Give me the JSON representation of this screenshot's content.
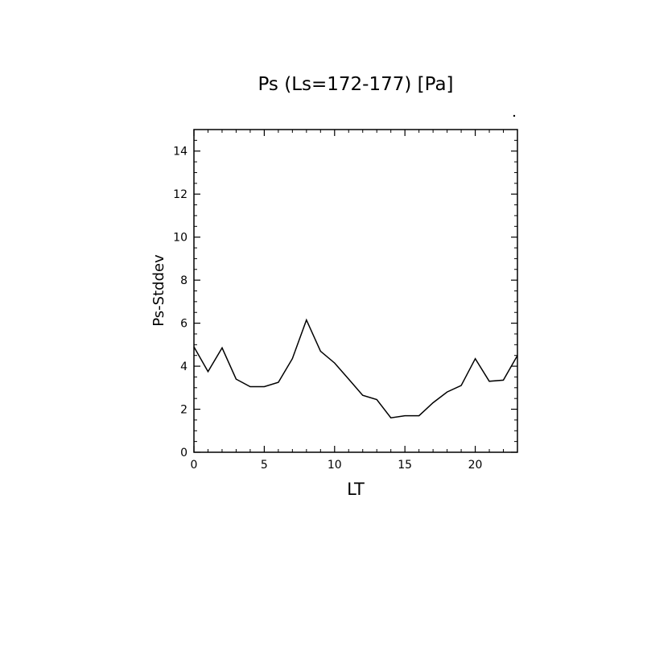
{
  "chart_data": {
    "type": "line",
    "title": "Ps (Ls=172-177) [Pa]",
    "xlabel": "LT",
    "ylabel": "Ps-Stddev",
    "xlim": [
      0,
      23
    ],
    "ylim": [
      0,
      15
    ],
    "x_ticks": [
      "0",
      "5",
      "10",
      "15",
      "20"
    ],
    "y_ticks": [
      "0",
      "2",
      "4",
      "6",
      "8",
      "10",
      "12",
      "14"
    ],
    "x_tick_values": [
      0,
      5,
      10,
      15,
      20
    ],
    "y_tick_values": [
      0,
      2,
      4,
      6,
      8,
      10,
      12,
      14
    ],
    "grid": false,
    "series": [
      {
        "x": [
          0,
          1,
          2,
          3,
          4,
          5,
          6,
          7,
          8,
          9,
          10,
          11,
          12,
          13,
          14,
          15,
          16,
          17,
          18,
          19,
          20,
          21,
          22,
          23
        ],
        "values": [
          4.9,
          3.75,
          4.85,
          3.4,
          3.05,
          3.05,
          3.25,
          4.35,
          6.15,
          4.7,
          4.15,
          3.4,
          2.65,
          2.45,
          1.6,
          1.7,
          1.7,
          2.3,
          2.8,
          3.1,
          4.35,
          3.3,
          3.35,
          4.5
        ],
        "color": "#000000"
      }
    ]
  }
}
